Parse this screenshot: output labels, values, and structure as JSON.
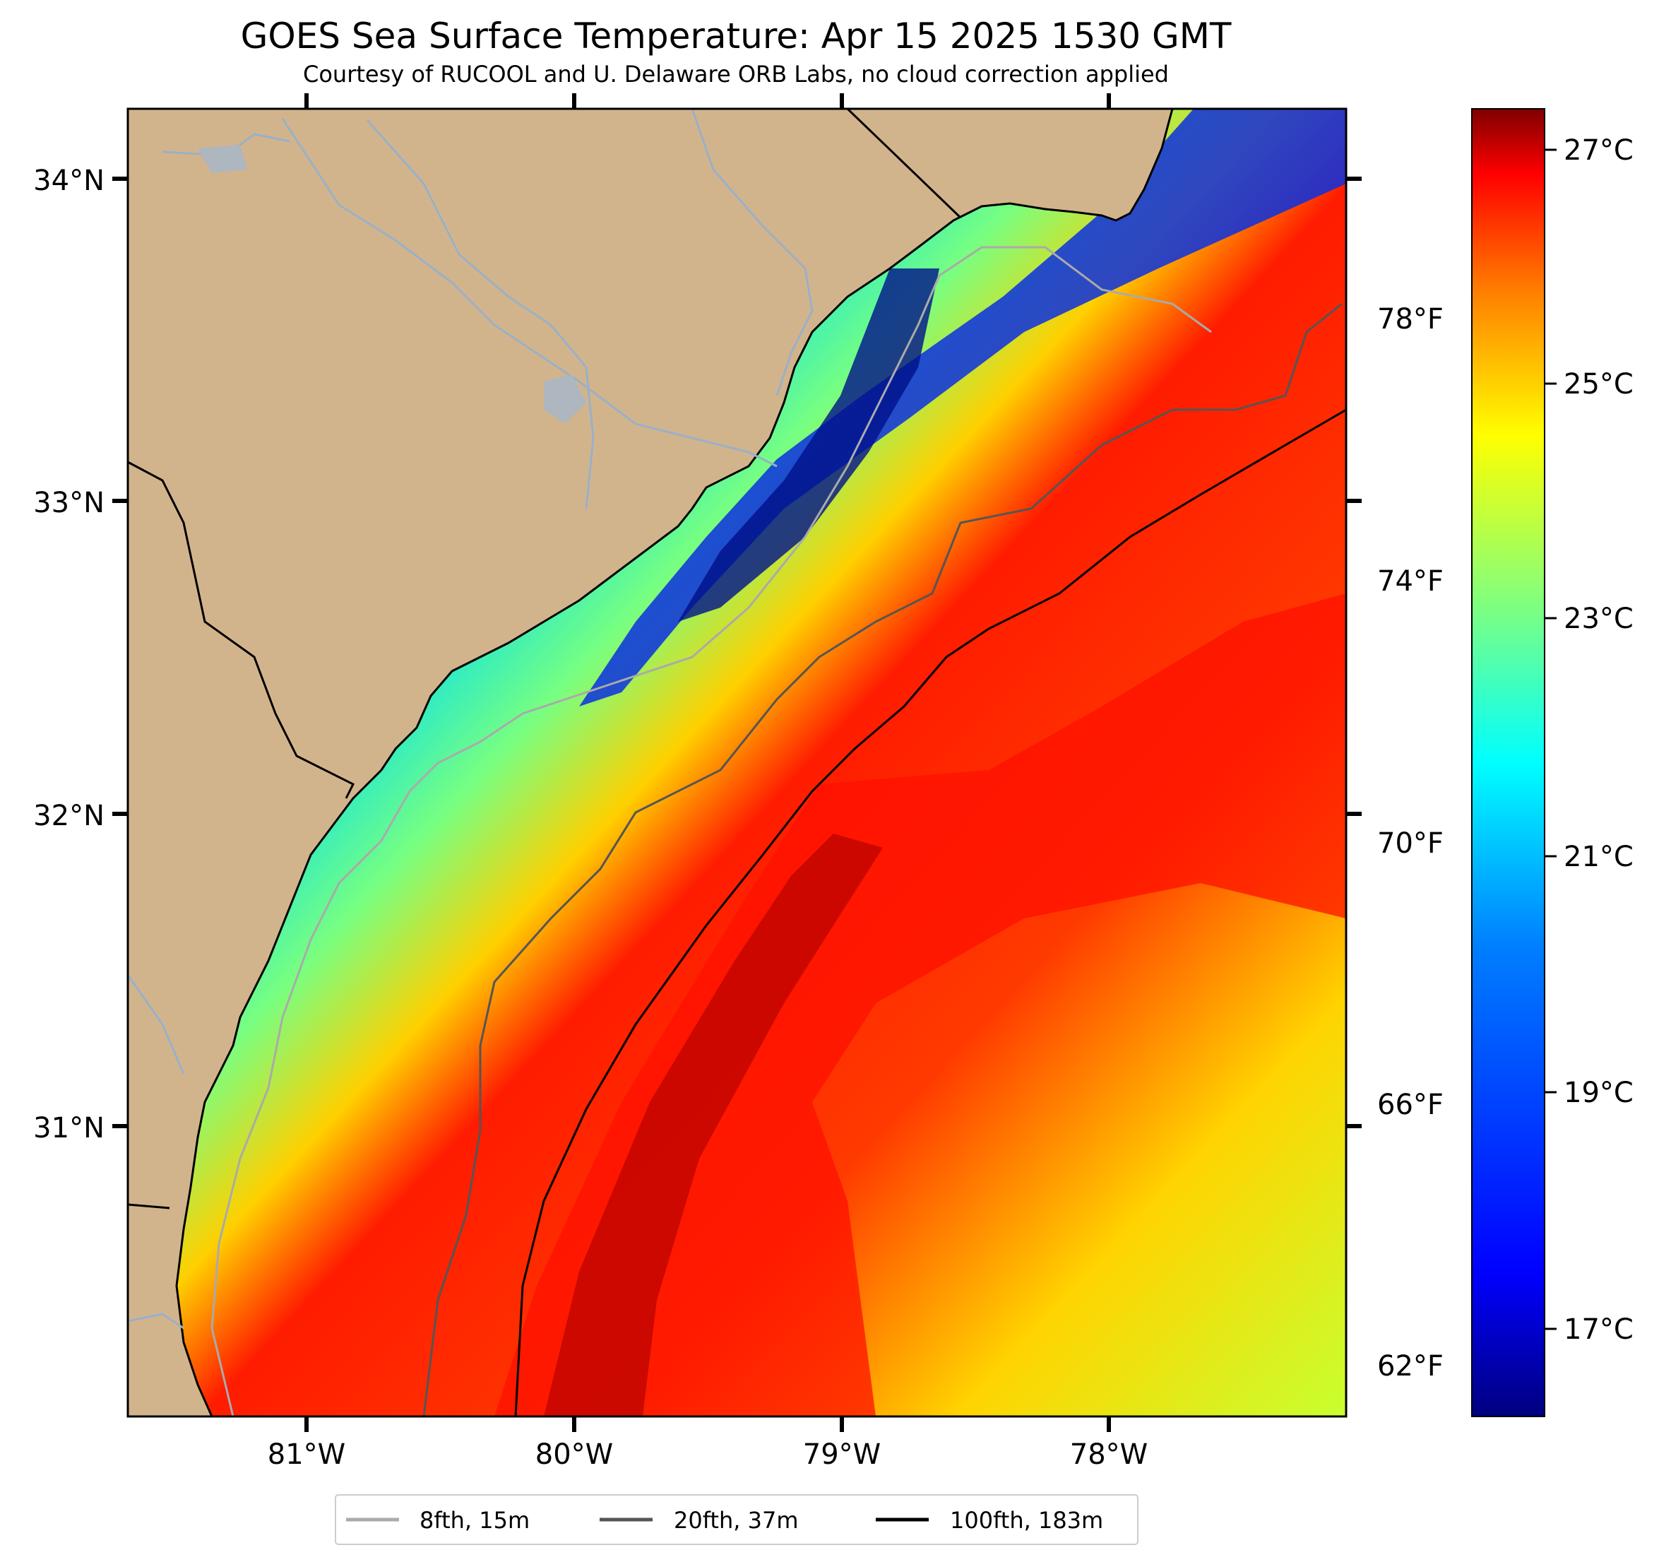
{
  "title": "GOES Sea Surface Temperature: Apr 15 2025 1530 GMT",
  "subtitle": "Courtesy of RUCOOL and U. Delaware ORB Labs, no cloud correction applied",
  "map": {
    "lat_labels": [
      "34°N",
      "33°N",
      "32°N",
      "31°N"
    ],
    "lon_labels": [
      "81°W",
      "80°W",
      "79°W",
      "78°W"
    ],
    "fahrenheit_labels": [
      "78°F",
      "74°F",
      "70°F",
      "66°F",
      "62°F"
    ],
    "lon_range": [
      -81.67,
      -77.12
    ],
    "lat_range": [
      30.09,
      34.22
    ]
  },
  "colorbar": {
    "labels": [
      "27°C",
      "25°C",
      "23°C",
      "21°C",
      "19°C",
      "17°C"
    ],
    "range_c": [
      16.2,
      27.4
    ],
    "colors": [
      "#00007f",
      "#0000ff",
      "#007fff",
      "#00ffff",
      "#7fff7f",
      "#ffff00",
      "#ff7f00",
      "#ff0000",
      "#7f0000"
    ]
  },
  "legend": {
    "items": [
      {
        "label": "8fth, 15m",
        "color": "#aaaaaa"
      },
      {
        "label": "20fth, 37m",
        "color": "#555555"
      },
      {
        "label": "100fth, 183m",
        "color": "#000000"
      }
    ]
  },
  "colors": {
    "land": "#d2b48c",
    "river": "#9ab0c8",
    "coastline": "#000000"
  }
}
